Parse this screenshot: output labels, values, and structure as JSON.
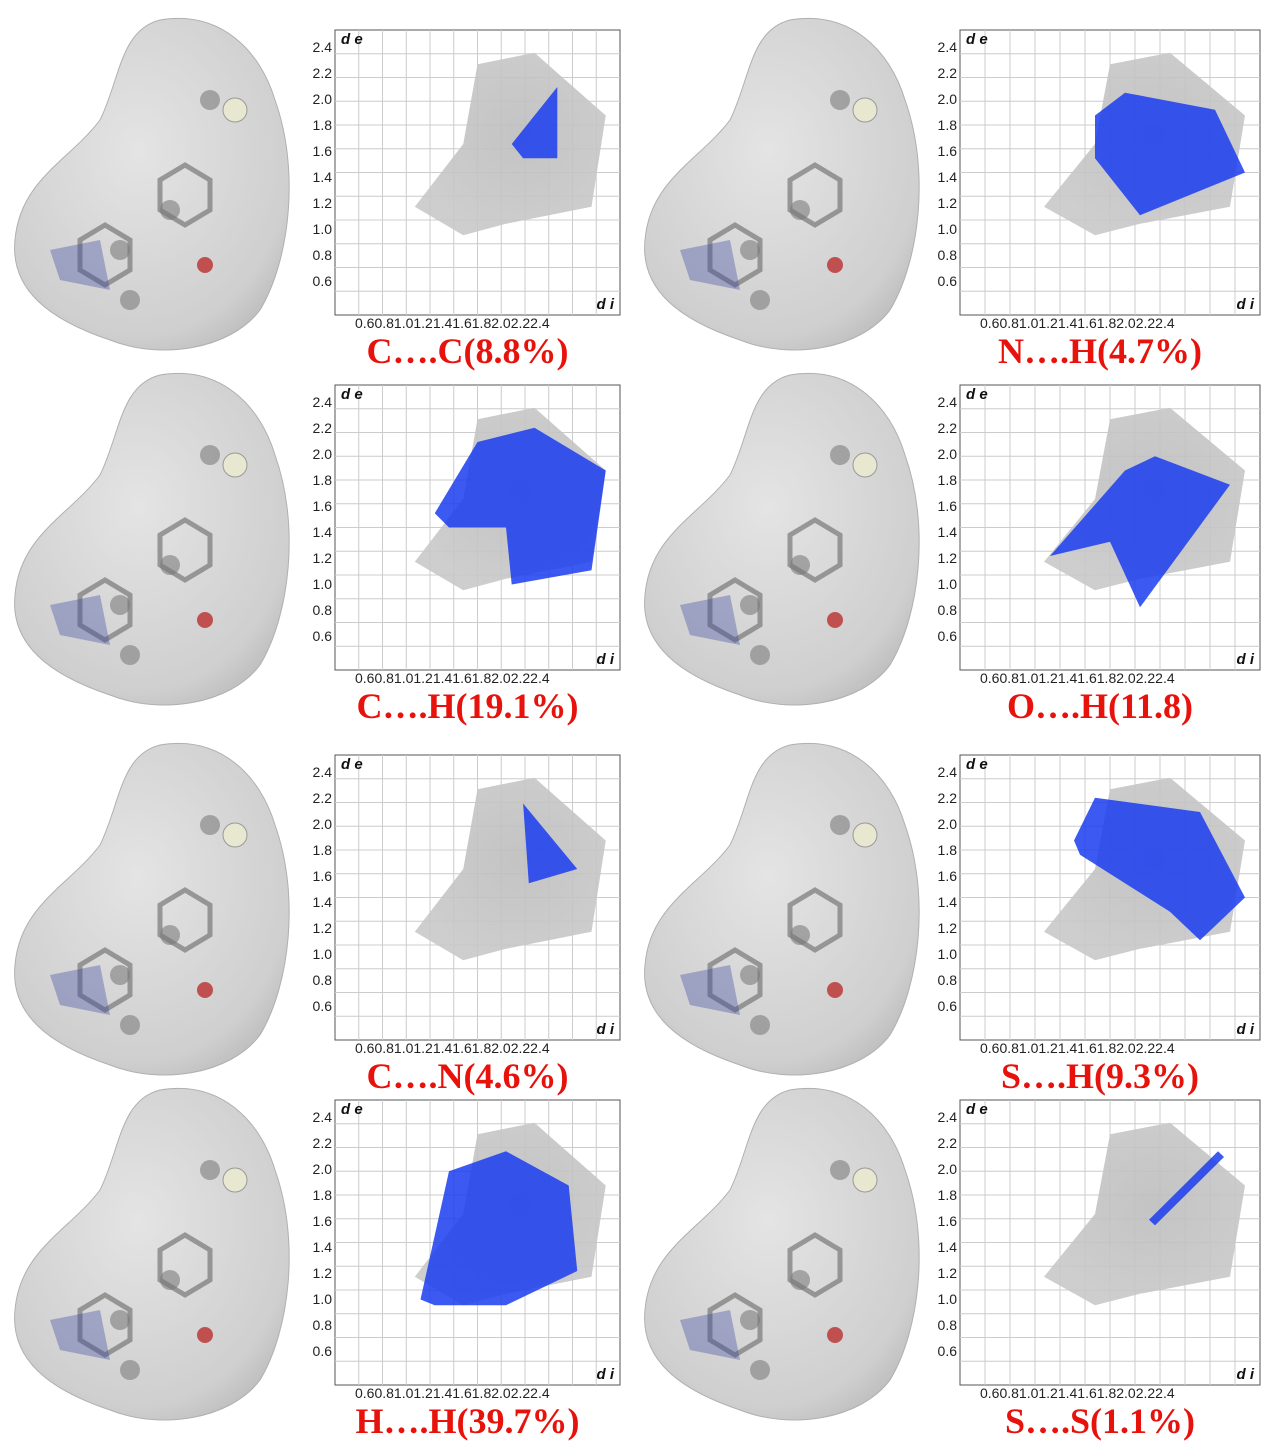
{
  "axis": {
    "y_label": "d e",
    "x_label": "d i",
    "x_ticks": "0.60.81.01.21.41.61.82.02.22.4",
    "y_ticks": [
      "2.4",
      "2.2",
      "2.0",
      "1.8",
      "1.6",
      "1.4",
      "1.2",
      "1.0",
      "0.8",
      "0.6"
    ]
  },
  "panels": [
    {
      "caption": "C….C(8.8%)"
    },
    {
      "caption": "N….H(4.7%)"
    },
    {
      "caption": "C….H(19.1%)"
    },
    {
      "caption": "O….H(11.8)"
    },
    {
      "caption": "C….N(4.6%)"
    },
    {
      "caption": "S….H(9.3%)"
    },
    {
      "caption": "H….H(39.7%)"
    },
    {
      "caption": "S….S(1.1%)"
    }
  ]
}
